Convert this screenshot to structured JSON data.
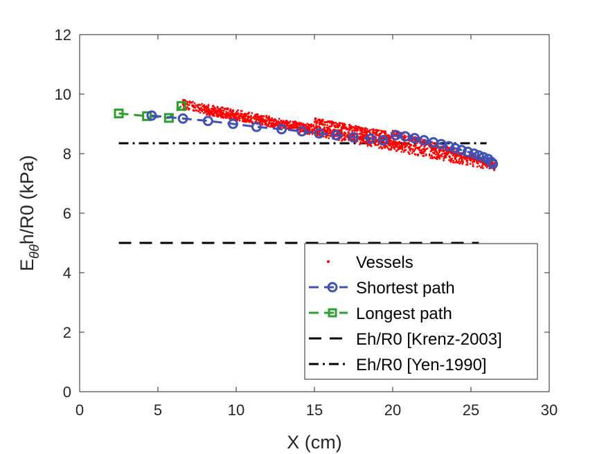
{
  "chart_data": {
    "type": "line",
    "xlabel": "X (cm)",
    "ylabel": {
      "main": "E",
      "subscript": "θθ",
      "rest": "h/R0 (kPa)"
    },
    "xlim": [
      0,
      30
    ],
    "ylim": [
      0,
      12
    ],
    "xticks": [
      0,
      5,
      10,
      15,
      20,
      25,
      30
    ],
    "yticks": [
      0,
      2,
      4,
      6,
      8,
      10,
      12
    ],
    "grid": false,
    "legend_position": "bottom-right",
    "series": [
      {
        "name": "Vessels",
        "kind": "scatter",
        "color": "#ff0000",
        "bands": [
          {
            "x0": 6.6,
            "y0": 9.65,
            "x1": 26.6,
            "y1": 7.6,
            "spread": 0.18
          },
          {
            "x0": 8.0,
            "y0": 9.45,
            "x1": 20.5,
            "y1": 8.3,
            "spread": 0.14
          },
          {
            "x0": 15.0,
            "y0": 9.1,
            "x1": 20.0,
            "y1": 8.6,
            "spread": 0.1
          },
          {
            "x0": 20.0,
            "y0": 8.7,
            "x1": 26.4,
            "y1": 7.65,
            "spread": 0.1
          }
        ]
      },
      {
        "name": "Shortest path",
        "kind": "line-marker",
        "marker": "circle",
        "color": "#3f51b5",
        "x": [
          4.6,
          6.6,
          8.2,
          9.8,
          11.3,
          12.9,
          14.2,
          15.3,
          16.4,
          17.5,
          18.6,
          19.4,
          20.2,
          20.8,
          21.4,
          22.0,
          22.6,
          23.1,
          23.6,
          24.0,
          24.4,
          24.8,
          25.2,
          25.5,
          25.8,
          26.1,
          26.3,
          26.4
        ],
        "y": [
          9.28,
          9.18,
          9.1,
          9.0,
          8.9,
          8.82,
          8.75,
          8.68,
          8.62,
          8.55,
          8.5,
          8.45,
          8.62,
          8.58,
          8.52,
          8.45,
          8.38,
          8.32,
          8.25,
          8.18,
          8.12,
          8.06,
          8.0,
          7.94,
          7.88,
          7.82,
          7.72,
          7.65
        ]
      },
      {
        "name": "Longest path",
        "kind": "line-marker",
        "marker": "square",
        "color": "#2ca02c",
        "x": [
          2.5,
          4.3,
          5.7,
          6.5
        ],
        "y": [
          9.35,
          9.26,
          9.2,
          9.6
        ]
      },
      {
        "name": "Eh/R0 [Krenz-2003]",
        "kind": "hline",
        "style": "dashed",
        "color": "#000000",
        "x": [
          2.5,
          25.5
        ],
        "y": 5.0
      },
      {
        "name": "Eh/R0 [Yen-1990]",
        "kind": "hline",
        "style": "dashdot",
        "color": "#000000",
        "x": [
          2.5,
          26.0
        ],
        "y": 8.35
      }
    ]
  }
}
